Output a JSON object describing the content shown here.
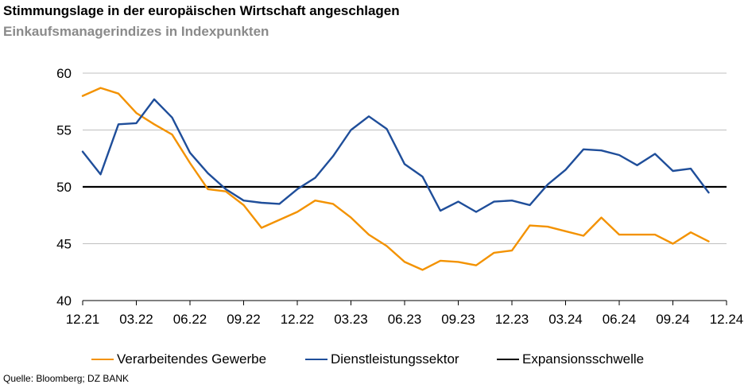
{
  "chart_data": {
    "type": "line",
    "title": "Stimmungslage in der europäischen Wirtschaft angeschlagen",
    "subtitle": "Einkaufsmanagerindizes in Indexpunkten",
    "x": [
      "12.21",
      "01.22",
      "02.22",
      "03.22",
      "04.22",
      "05.22",
      "06.22",
      "07.22",
      "08.22",
      "09.22",
      "10.22",
      "11.22",
      "12.22",
      "01.23",
      "02.23",
      "03.23",
      "04.23",
      "05.23",
      "06.23",
      "07.23",
      "08.23",
      "09.23",
      "10.23",
      "11.23",
      "12.23",
      "01.24",
      "02.24",
      "03.24",
      "04.24",
      "05.24",
      "06.24",
      "07.24",
      "08.24",
      "09.24",
      "10.24",
      "11.24"
    ],
    "x_tick_labels": [
      "12.21",
      "03.22",
      "06.22",
      "09.22",
      "12.22",
      "03.23",
      "06.23",
      "09.23",
      "12.23",
      "03.24",
      "06.24",
      "09.24",
      "12.24"
    ],
    "ylim": [
      40,
      60
    ],
    "y_ticks": [
      "40",
      "45",
      "50",
      "55",
      "60"
    ],
    "grid": true,
    "legend_position": "bottom",
    "series": [
      {
        "name": "Verarbeitendes Gewerbe",
        "color": "#f39200",
        "values": [
          58.0,
          58.7,
          58.2,
          56.5,
          55.5,
          54.6,
          52.1,
          49.8,
          49.6,
          48.4,
          46.4,
          47.1,
          47.8,
          48.8,
          48.5,
          47.3,
          45.8,
          44.8,
          43.4,
          42.7,
          43.5,
          43.4,
          43.1,
          44.2,
          44.4,
          46.6,
          46.5,
          46.1,
          45.7,
          47.3,
          45.8,
          45.8,
          45.8,
          45.0,
          46.0,
          45.2
        ]
      },
      {
        "name": "Dienstleistungssektor",
        "color": "#1f4e9a",
        "values": [
          53.1,
          51.1,
          55.5,
          55.6,
          57.7,
          56.1,
          53.0,
          51.2,
          49.8,
          48.8,
          48.6,
          48.5,
          49.8,
          50.8,
          52.7,
          55.0,
          56.2,
          55.1,
          52.0,
          50.9,
          47.9,
          48.7,
          47.8,
          48.7,
          48.8,
          48.4,
          50.2,
          51.5,
          53.3,
          53.2,
          52.8,
          51.9,
          52.9,
          51.4,
          51.6,
          49.5
        ]
      },
      {
        "name": "Expansionsschwelle",
        "color": "#000000",
        "values": [
          50,
          50,
          50,
          50,
          50,
          50,
          50,
          50,
          50,
          50,
          50,
          50,
          50,
          50,
          50,
          50,
          50,
          50,
          50,
          50,
          50,
          50,
          50,
          50,
          50,
          50,
          50,
          50,
          50,
          50,
          50,
          50,
          50,
          50,
          50,
          50
        ]
      }
    ]
  },
  "source": "Quelle: Bloomberg; DZ BANK"
}
